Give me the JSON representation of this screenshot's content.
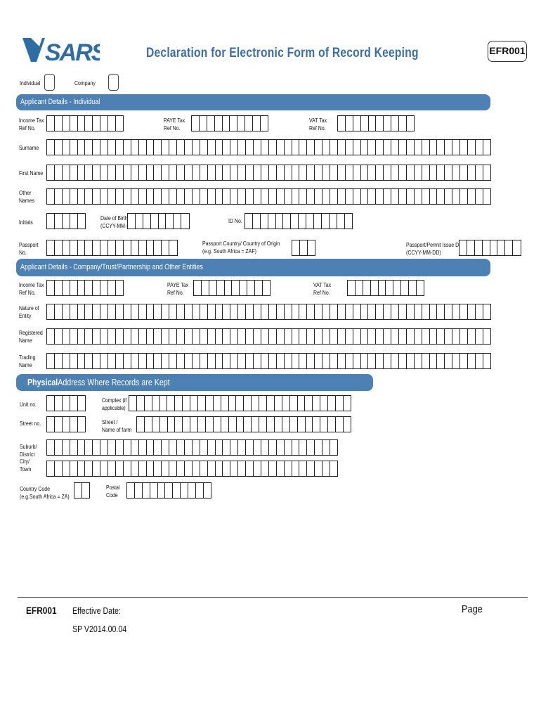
{
  "header": {
    "logo_text": "SARS",
    "title": "Declaration for Electronic Form of Record Keeping",
    "form_code": "EFR001"
  },
  "type": {
    "individual": "Individual",
    "company": "Company"
  },
  "individual": {
    "heading": "Applicant Details - Individual",
    "income_tax_1": "Income Tax",
    "income_tax_2": "Ref No.",
    "paye_1": "PAYE Tax",
    "paye_2": "Ref No.",
    "vat_1": "VAT Tax",
    "vat_2": "Ref No.",
    "surname": "Surname",
    "first_name": "First Name",
    "other_names_1": "Other",
    "other_names_2": "Names",
    "initials": "Initials",
    "dob_1": "Date of Birth",
    "dob_2": "(CCYY-MM-DD)",
    "id_no": "ID No.",
    "passport_1": "Passport",
    "passport_2": "No.",
    "passport_country_1": "Passport Country/ Country of Origin",
    "passport_country_2": "(e.g. South Africa = ZAF)",
    "passport_issue_1": "Passport/Permit Issue Date",
    "passport_issue_2": "(CCYY-MM-DD)"
  },
  "company": {
    "heading": "Applicant Details - Company/Trust/Partnership and Other Entities",
    "income_tax_1": "Income Tax",
    "income_tax_2": "Ref No.",
    "paye_1": "PAYE Tax",
    "paye_2": "Ref No.",
    "vat_1": "VAT Tax",
    "vat_2": "Ref No.",
    "nature_1": "Nature of",
    "nature_2": "Entity",
    "registered_1": "Registered",
    "registered_2": "Name",
    "trading_1": "Trading",
    "trading_2": "Name"
  },
  "address": {
    "heading_bold": "Physical",
    "heading_rest": " Address Where Records are Kept",
    "unit_no": "Unit no.",
    "complex_1": "Complex (if",
    "complex_2": "applicable)",
    "street_no": "Street no.",
    "street_1": "Street /",
    "street_2": "Name of farm",
    "suburb_1": "Suburb/",
    "suburb_2": "District",
    "city_1": "City/",
    "city_2": "Town",
    "country_1": "Country Code",
    "country_2": "(e.g.South Africa = ZA)",
    "postal_1": "Postal",
    "postal_2": "Code"
  },
  "footer": {
    "code": "EFR001",
    "effective_date": "Effective Date:",
    "version": "SP V2014.00.04",
    "page": "Page"
  }
}
